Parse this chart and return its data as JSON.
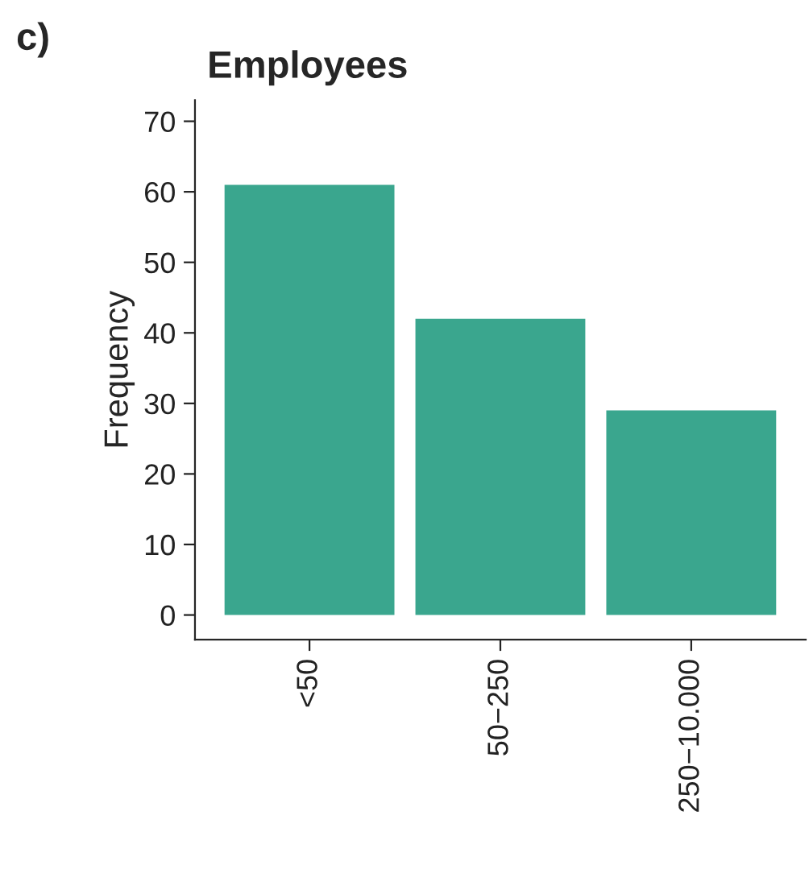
{
  "chart_data": {
    "type": "bar",
    "title": "Employees",
    "ylabel": "Frequency",
    "annotations": [
      "c)"
    ],
    "categories": [
      "<50",
      "50−250",
      "250−10.000"
    ],
    "values": [
      61,
      42,
      29
    ],
    "color": "#3aa68e",
    "ylim": [
      -3.5,
      73
    ],
    "yticks": [
      0,
      10,
      20,
      30,
      40,
      50,
      60,
      70
    ],
    "grid": false
  }
}
